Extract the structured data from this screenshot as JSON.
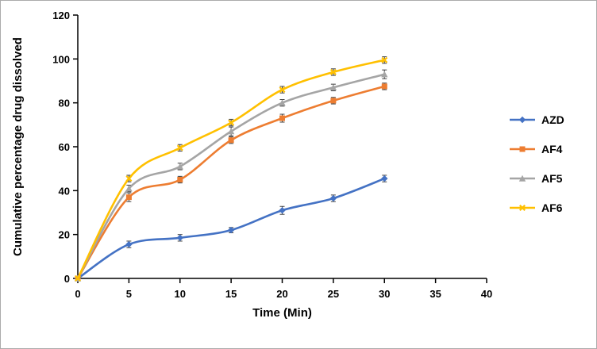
{
  "chart_data": {
    "type": "line",
    "title": "",
    "xlabel": "Time (Min)",
    "ylabel": "Cumulative percentage drug dissolved",
    "x": [
      0,
      5,
      10,
      15,
      20,
      25,
      30
    ],
    "xlim": [
      0,
      40
    ],
    "ylim": [
      0,
      120
    ],
    "xticks": [
      0,
      5,
      10,
      15,
      20,
      25,
      30,
      35,
      40
    ],
    "yticks": [
      0,
      20,
      40,
      60,
      80,
      100,
      120
    ],
    "grid": false,
    "legend_position": "right",
    "error_bar_color": "#404040",
    "series": [
      {
        "name": "AZD",
        "color": "#4472C4",
        "marker": "diamond",
        "values": [
          0,
          15.5,
          18.5,
          22,
          31,
          36.5,
          45.5
        ],
        "errors": [
          0,
          1.5,
          1.5,
          1.2,
          1.8,
          1.5,
          1.5
        ]
      },
      {
        "name": "AF4",
        "color": "#ED7D31",
        "marker": "square",
        "values": [
          0,
          37,
          45,
          63,
          73,
          81,
          87.5
        ],
        "errors": [
          0,
          2,
          1.5,
          1.5,
          1.8,
          1.5,
          1.5
        ]
      },
      {
        "name": "AF5",
        "color": "#A5A5A5",
        "marker": "triangle",
        "values": [
          0,
          41,
          51,
          67,
          80,
          87,
          93
        ],
        "errors": [
          0,
          1.5,
          1.5,
          2,
          1.5,
          1.5,
          2
        ]
      },
      {
        "name": "AF6",
        "color": "#FFC000",
        "marker": "x",
        "values": [
          0,
          45.5,
          59.5,
          71,
          86,
          94,
          99.5
        ],
        "errors": [
          0,
          1.5,
          1.5,
          1.5,
          1.5,
          1.5,
          1.5
        ]
      }
    ]
  }
}
